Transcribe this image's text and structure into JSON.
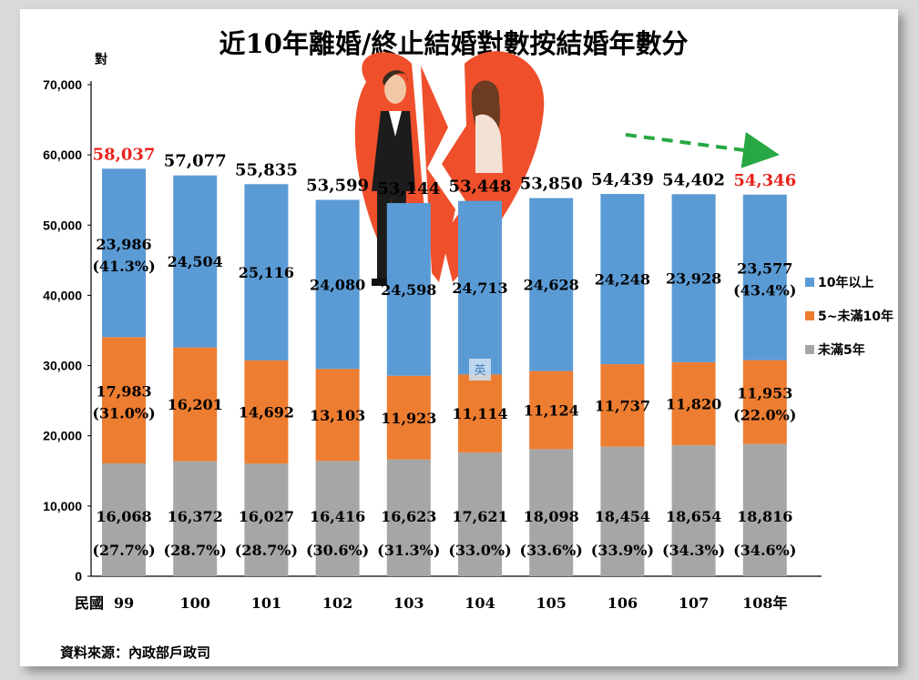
{
  "chart_data": {
    "type": "bar",
    "stacked": true,
    "title": "近10年離婚/終止結婚對數按結婚年數分",
    "ylabel": "對",
    "x_prefix": "民國",
    "categories": [
      "99",
      "100",
      "101",
      "102",
      "103",
      "104",
      "105",
      "106",
      "107",
      "108年"
    ],
    "ylim": [
      0,
      70000
    ],
    "yticks": [
      "0",
      "10,000",
      "20,000",
      "30,000",
      "40,000",
      "50,000",
      "60,000",
      "70,000"
    ],
    "series": [
      {
        "name": "未滿5年",
        "color": "#a6a6a6",
        "values": [
          16068,
          16372,
          16027,
          16416,
          16623,
          17621,
          18098,
          18454,
          18654,
          18816
        ],
        "labels": [
          "16,068",
          "16,372",
          "16,027",
          "16,416",
          "16,623",
          "17,621",
          "18,098",
          "18,454",
          "18,654",
          "18,816"
        ],
        "pct": [
          "(27.7%)",
          "(28.7%)",
          "(28.7%)",
          "(30.6%)",
          "(31.3%)",
          "(33.0%)",
          "(33.6%)",
          "(33.9%)",
          "(34.3%)",
          "(34.6%)"
        ]
      },
      {
        "name": "5~未滿10年",
        "color": "#ed7d31",
        "values": [
          17983,
          16201,
          14692,
          13103,
          11923,
          11114,
          11124,
          11737,
          11820,
          11953
        ],
        "labels": [
          "17,983",
          "16,201",
          "14,692",
          "13,103",
          "11,923",
          "11,114",
          "11,124",
          "11,737",
          "11,820",
          "11,953"
        ],
        "pct": [
          "(31.0%)",
          "",
          "",
          "",
          "",
          "",
          "",
          "",
          "",
          "(22.0%)"
        ]
      },
      {
        "name": "10年以上",
        "color": "#5b9bd5",
        "values": [
          23986,
          24504,
          25116,
          24080,
          24598,
          24713,
          24628,
          24248,
          23928,
          23577
        ],
        "labels": [
          "23,986",
          "24,504",
          "25,116",
          "24,080",
          "24,598",
          "24,713",
          "24,628",
          "24,248",
          "23,928",
          "23,577"
        ],
        "pct": [
          "(41.3%)",
          "",
          "",
          "",
          "",
          "",
          "",
          "",
          "",
          "(43.4%)"
        ]
      }
    ],
    "totals": [
      58037,
      57077,
      55835,
      53599,
      53144,
      53448,
      53850,
      54439,
      54402,
      54346
    ],
    "total_labels": [
      "58,037",
      "57,077",
      "55,835",
      "53,599",
      "53,144",
      "53,448",
      "53,850",
      "54,439",
      "54,402",
      "54,346"
    ],
    "highlight_total_indices": [
      0,
      9
    ],
    "highlight_color": "#e8231c",
    "legend_position": "right",
    "grid": false,
    "annotation": "trend-arrow-down",
    "watermark_char": "英"
  },
  "source_text": "資料來源：內政部戶政司"
}
